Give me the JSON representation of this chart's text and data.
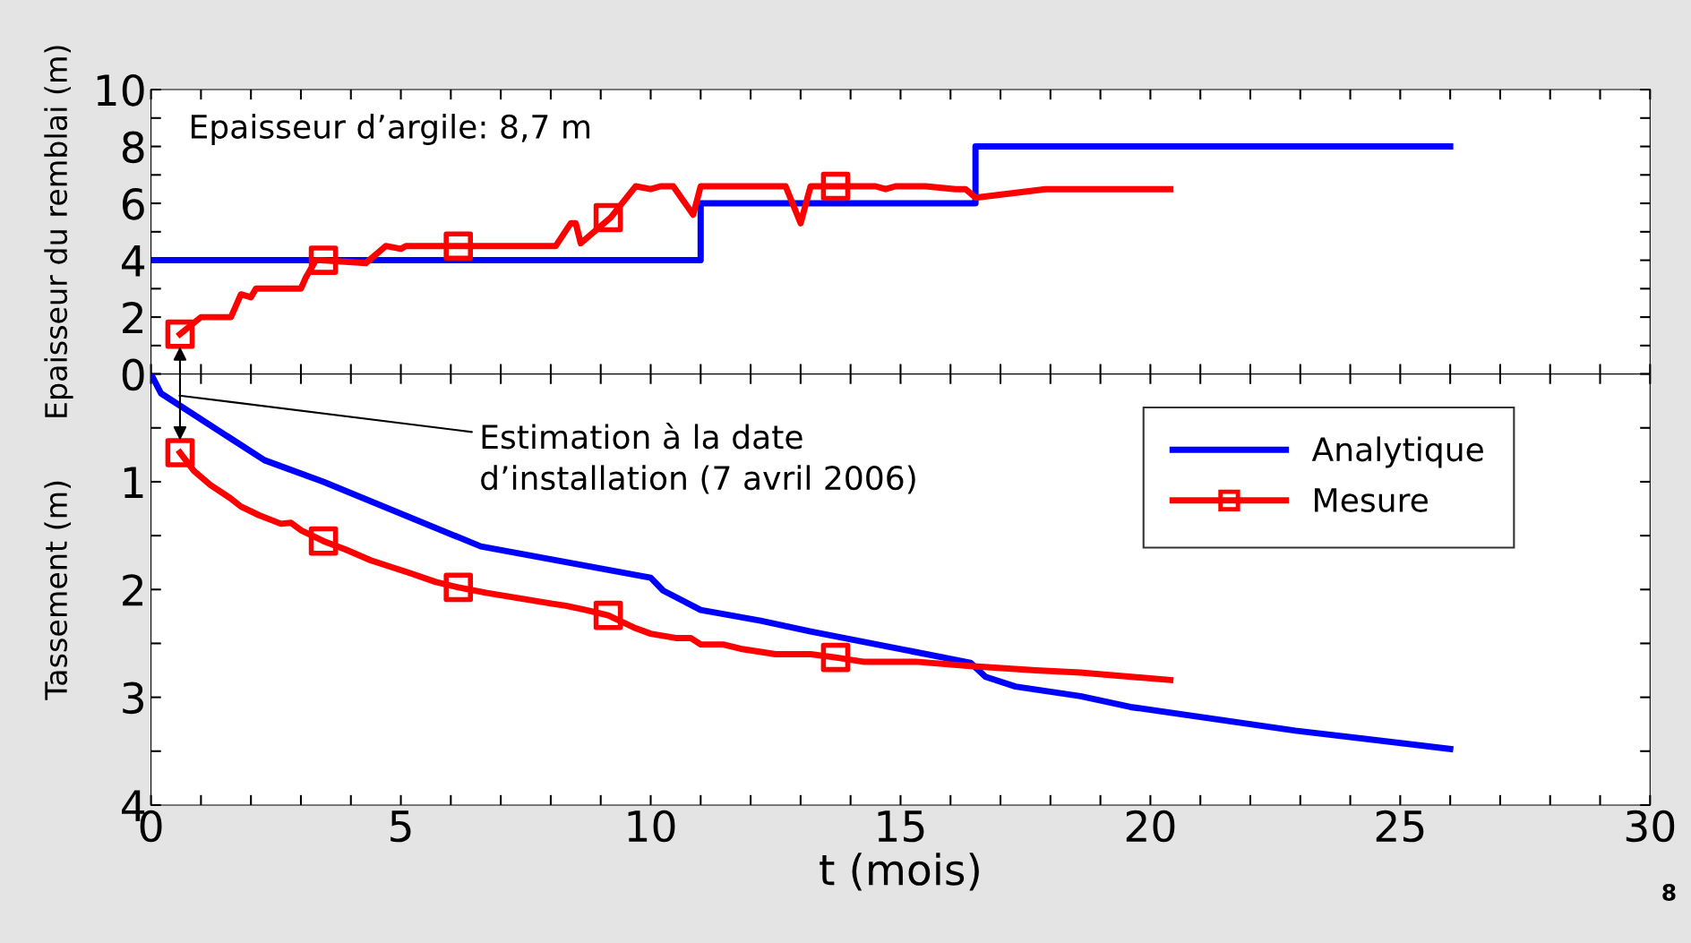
{
  "chart_data": [
    {
      "type": "line",
      "ylabel": "Epaisseur du remblai (m)",
      "xlim": [
        0,
        30
      ],
      "xticks": [
        0,
        {
          "value": 1,
          "label": null
        },
        {
          "value": 2,
          "label": null
        },
        {
          "value": 3,
          "label": null
        },
        {
          "value": 4,
          "label": null
        },
        5,
        {
          "value": 6,
          "label": null
        },
        {
          "value": 7,
          "label": null
        },
        {
          "value": 8,
          "label": null
        },
        {
          "value": 9,
          "label": null
        },
        10,
        {
          "value": 11,
          "label": null
        },
        {
          "value": 12,
          "label": null
        },
        {
          "value": 13,
          "label": null
        },
        {
          "value": 14,
          "label": null
        },
        15,
        {
          "value": 16,
          "label": null
        },
        {
          "value": 17,
          "label": null
        },
        {
          "value": 18,
          "label": null
        },
        {
          "value": 19,
          "label": null
        },
        20,
        {
          "value": 21,
          "label": null
        },
        {
          "value": 22,
          "label": null
        },
        {
          "value": 23,
          "label": null
        },
        {
          "value": 24,
          "label": null
        },
        25,
        {
          "value": 26,
          "label": null
        },
        {
          "value": 27,
          "label": null
        },
        {
          "value": 28,
          "label": null
        },
        {
          "value": 29,
          "label": null
        },
        30
      ],
      "ylim": [
        0,
        10
      ],
      "yticks": [
        0,
        {
          "value": 1,
          "label": null
        },
        2,
        {
          "value": 3,
          "label": null
        },
        4,
        {
          "value": 5,
          "label": null
        },
        6,
        {
          "value": 7,
          "label": null
        },
        8,
        {
          "value": 9,
          "label": null
        },
        10
      ],
      "tick_labels": "y",
      "grid": false,
      "legend": false,
      "annotations": [
        "Epaisseur d’argile: 8,7 m"
      ],
      "series": [
        {
          "type": "step",
          "color": "#0000ff",
          "x": [
            0,
            11,
            16.5,
            26
          ],
          "values": [
            4,
            6,
            8,
            8
          ]
        },
        {
          "color": "#ff0000",
          "marker": "none",
          "x": [
            0.58,
            1.0,
            1.6,
            1.8,
            2.0,
            2.1,
            3.0,
            3.1,
            3.3,
            3.4,
            4.3,
            4.7,
            5.0,
            5.1,
            8.1,
            8.4,
            8.5,
            8.6,
            9.2,
            9.7,
            10.0,
            10.2,
            10.45,
            10.85,
            11.0,
            12.7,
            13.0,
            13.2,
            14.5,
            14.7,
            14.9,
            15.5,
            16.1,
            16.3,
            16.5,
            17.9,
            20.4
          ],
          "values": [
            1.4,
            2.0,
            2.0,
            2.8,
            2.7,
            3.0,
            3.0,
            3.4,
            4.0,
            4.0,
            3.9,
            4.5,
            4.4,
            4.5,
            4.5,
            5.3,
            5.3,
            4.6,
            5.5,
            6.6,
            6.5,
            6.6,
            6.6,
            5.6,
            6.6,
            6.6,
            5.3,
            6.6,
            6.6,
            6.5,
            6.6,
            6.6,
            6.5,
            6.5,
            6.2,
            6.5,
            6.5
          ]
        },
        {
          "type": "scatter",
          "color": "#ff0000",
          "marker": "square",
          "x": [
            0.58,
            3.45,
            6.15,
            9.15,
            13.7
          ],
          "values": [
            1.4,
            4.0,
            4.5,
            5.5,
            6.6
          ]
        }
      ]
    },
    {
      "type": "line",
      "ylabel": "Tassement (m)",
      "xlabel": "t (mois)",
      "xlim": [
        0,
        30
      ],
      "xticks": [
        0,
        {
          "value": 1,
          "label": null
        },
        {
          "value": 2,
          "label": null
        },
        {
          "value": 3,
          "label": null
        },
        {
          "value": 4,
          "label": null
        },
        5,
        {
          "value": 6,
          "label": null
        },
        {
          "value": 7,
          "label": null
        },
        {
          "value": 8,
          "label": null
        },
        {
          "value": 9,
          "label": null
        },
        10,
        {
          "value": 11,
          "label": null
        },
        {
          "value": 12,
          "label": null
        },
        {
          "value": 13,
          "label": null
        },
        {
          "value": 14,
          "label": null
        },
        15,
        {
          "value": 16,
          "label": null
        },
        {
          "value": 17,
          "label": null
        },
        {
          "value": 18,
          "label": null
        },
        {
          "value": 19,
          "label": null
        },
        20,
        {
          "value": 21,
          "label": null
        },
        {
          "value": 22,
          "label": null
        },
        {
          "value": 23,
          "label": null
        },
        {
          "value": 24,
          "label": null
        },
        25,
        {
          "value": 26,
          "label": null
        },
        {
          "value": 27,
          "label": null
        },
        {
          "value": 28,
          "label": null
        },
        {
          "value": 29,
          "label": null
        },
        30
      ],
      "ylim": [
        4,
        0
      ],
      "yticks": [
        {
          "value": 0,
          "label": null
        },
        {
          "value": 0.5,
          "label": null
        },
        1,
        {
          "value": 1.5,
          "label": null
        },
        2,
        {
          "value": 2.5,
          "label": null
        },
        3,
        {
          "value": 3.5,
          "label": null
        },
        4
      ],
      "grid": false,
      "legend": "top right",
      "annotations": [
        "Estimation à la date\nd’installation (7 avril 2006)",
        "8"
      ],
      "series": [
        {
          "name": "Analytique",
          "color": "#0000ff",
          "x": [
            0,
            0.2,
            2.27,
            3.45,
            6.6,
            10,
            10.25,
            11,
            12.2,
            13.2,
            16.4,
            16.7,
            17.3,
            18.6,
            19.6,
            22.9,
            26.0
          ],
          "values": [
            0,
            0.18,
            0.8,
            1.0,
            1.6,
            1.89,
            2.01,
            2.19,
            2.29,
            2.39,
            2.68,
            2.81,
            2.9,
            2.99,
            3.09,
            3.31,
            3.48
          ]
        },
        {
          "name": "Mesure",
          "color": "#ff0000",
          "marker": "none",
          "x": [
            0.58,
            0.86,
            1.19,
            1.58,
            1.8,
            2.16,
            2.6,
            2.8,
            3.0,
            3.45,
            3.9,
            4.4,
            5.2,
            5.7,
            6.15,
            6.7,
            7.35,
            8.0,
            8.3,
            8.7,
            9.15,
            9.7,
            10.0,
            10.5,
            10.8,
            11,
            11.45,
            11.8,
            12.5,
            13.2,
            13.7,
            14.25,
            15.3,
            16.4,
            17.7,
            18.6,
            20.4
          ],
          "values": [
            0.73,
            0.9,
            1.03,
            1.15,
            1.23,
            1.31,
            1.39,
            1.38,
            1.45,
            1.55,
            1.63,
            1.73,
            1.85,
            1.93,
            1.98,
            2.03,
            2.08,
            2.13,
            2.15,
            2.19,
            2.24,
            2.36,
            2.41,
            2.45,
            2.45,
            2.51,
            2.51,
            2.55,
            2.6,
            2.6,
            2.63,
            2.67,
            2.67,
            2.71,
            2.75,
            2.77,
            2.84
          ]
        },
        {
          "type": "scatter",
          "color": "#ff0000",
          "marker": "square",
          "x": [
            0.58,
            3.45,
            6.15,
            9.15,
            13.7
          ],
          "values": [
            0.73,
            1.55,
            1.98,
            2.24,
            2.63
          ]
        }
      ]
    }
  ]
}
